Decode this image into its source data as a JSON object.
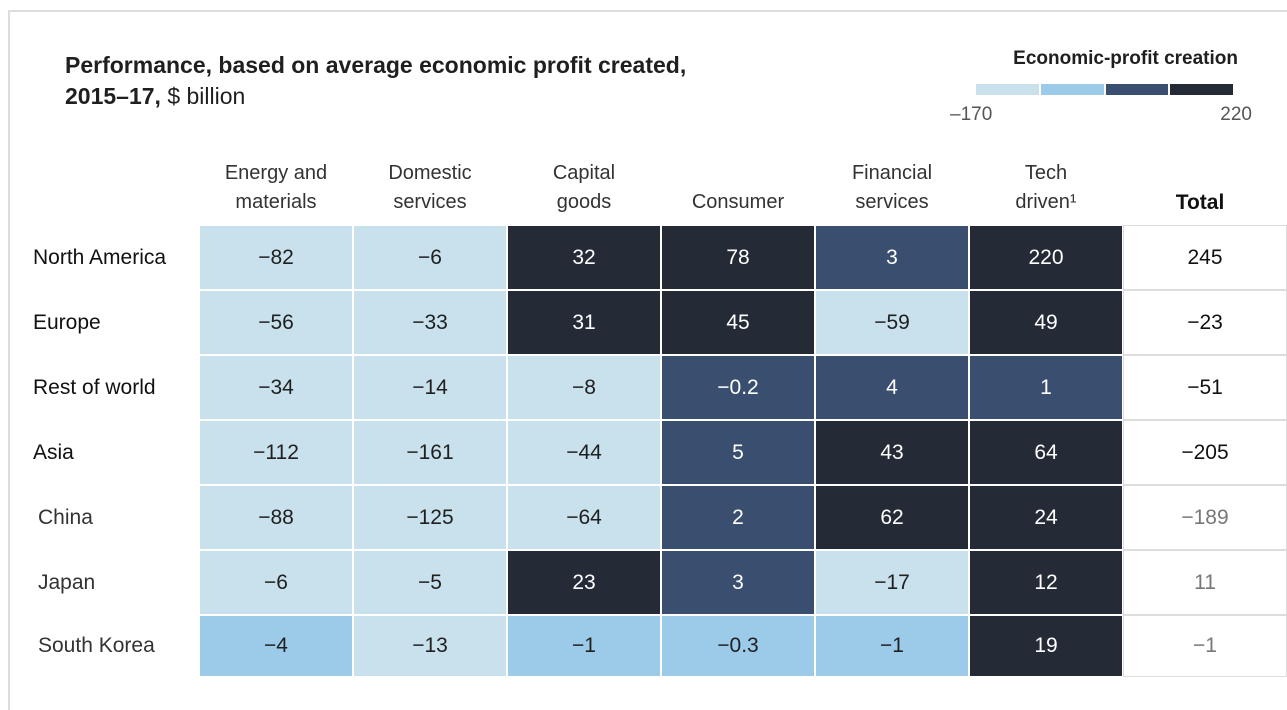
{
  "header": {
    "title": "Performance, based on average economic profit created,",
    "title_bold": "2015–17,",
    "title_unit": "$ billion"
  },
  "legend": {
    "title": "Economic-profit creation",
    "min_label": "–170",
    "max_label": "220",
    "colors": [
      "#c8e1ed",
      "#9ccbe9",
      "#3a4f6f",
      "#252b36"
    ]
  },
  "table": {
    "columns": [
      [
        "Energy and",
        "materials"
      ],
      [
        "Domestic",
        "services"
      ],
      [
        "Capital",
        "goods"
      ],
      [
        "Consumer"
      ],
      [
        "Financial",
        "services"
      ],
      [
        "Tech",
        "driven¹"
      ],
      [
        "Total"
      ]
    ],
    "rows": [
      {
        "label": "North America",
        "sub": false,
        "cells": [
          "−82",
          "−6",
          "32",
          "78",
          "3",
          "220",
          "245"
        ],
        "colors": [
          "#c8e1ed",
          "#c8e1ed",
          "#252b36",
          "#252b36",
          "#3a4f6f",
          "#252b36"
        ]
      },
      {
        "label": "Europe",
        "sub": false,
        "cells": [
          "−56",
          "−33",
          "31",
          "45",
          "−59",
          "49",
          "−23"
        ],
        "colors": [
          "#c8e1ed",
          "#c8e1ed",
          "#252b36",
          "#252b36",
          "#c8e1ed",
          "#252b36"
        ]
      },
      {
        "label": "Rest of world",
        "sub": false,
        "cells": [
          "−34",
          "−14",
          "−8",
          "−0.2",
          "4",
          "1",
          "−51"
        ],
        "colors": [
          "#c8e1ed",
          "#c8e1ed",
          "#c8e1ed",
          "#3a4f6f",
          "#3a4f6f",
          "#3a4f6f"
        ]
      },
      {
        "label": "Asia",
        "sub": false,
        "cells": [
          "−112",
          "−161",
          "−44",
          "5",
          "43",
          "64",
          "−205"
        ],
        "colors": [
          "#c8e1ed",
          "#c8e1ed",
          "#c8e1ed",
          "#3a4f6f",
          "#252b36",
          "#252b36"
        ]
      },
      {
        "label": "China",
        "sub": true,
        "cells": [
          "−88",
          "−125",
          "−64",
          "2",
          "62",
          "24",
          "−189"
        ],
        "colors": [
          "#c8e1ed",
          "#c8e1ed",
          "#c8e1ed",
          "#3a4f6f",
          "#252b36",
          "#252b36"
        ]
      },
      {
        "label": "Japan",
        "sub": true,
        "cells": [
          "−6",
          "−5",
          "23",
          "3",
          "−17",
          "12",
          "11"
        ],
        "colors": [
          "#c8e1ed",
          "#c8e1ed",
          "#252b36",
          "#3a4f6f",
          "#c8e1ed",
          "#252b36"
        ]
      },
      {
        "label": "South Korea",
        "sub": true,
        "cells": [
          "−4",
          "−13",
          "−1",
          "−0.3",
          "−1",
          "19",
          "−1"
        ],
        "colors": [
          "#9ccbe9",
          "#c8e1ed",
          "#9ccbe9",
          "#9ccbe9",
          "#9ccbe9",
          "#252b36"
        ]
      }
    ]
  }
}
